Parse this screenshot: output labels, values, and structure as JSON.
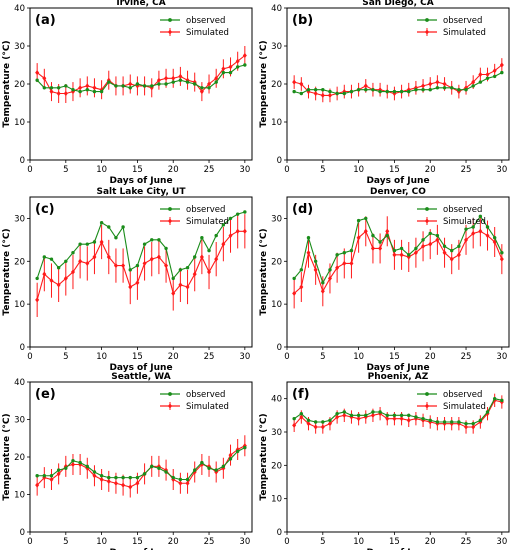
{
  "colors": {
    "observed": "#1a8c1a",
    "simulated": "#ff1a1a"
  },
  "legend": {
    "observed": "observed",
    "simulated": "Simulated",
    "placement": "top-right"
  },
  "chart_data": [
    {
      "type": "line",
      "letter": "(a)",
      "title": "Irvine, CA",
      "xlabel": "Days of June",
      "ylabel": "Temperature (°C)",
      "xlim": [
        0,
        31
      ],
      "ylim": [
        0,
        40
      ],
      "xticks": [
        0,
        5,
        10,
        15,
        20,
        25,
        30
      ],
      "yticks": [
        0,
        10,
        20,
        30,
        40
      ],
      "x": [
        1,
        2,
        3,
        4,
        5,
        6,
        7,
        8,
        9,
        10,
        11,
        12,
        13,
        14,
        15,
        16,
        17,
        18,
        19,
        20,
        21,
        22,
        23,
        24,
        25,
        26,
        27,
        28,
        29,
        30
      ],
      "series": [
        {
          "name": "observed",
          "values": [
            21,
            19,
            19,
            19,
            19.5,
            18.5,
            18,
            18.5,
            18,
            18,
            20.5,
            19.5,
            19.5,
            19,
            20,
            19.5,
            19.5,
            20,
            20,
            20.5,
            21,
            20.5,
            20,
            19,
            19,
            20.5,
            23,
            23,
            24.5,
            25
          ]
        },
        {
          "name": "Simulated",
          "values": [
            23,
            21.5,
            18,
            17.5,
            17.5,
            18,
            19,
            19.5,
            19,
            18.5,
            21,
            19.5,
            19.5,
            20,
            19.5,
            19.5,
            19,
            21,
            21.5,
            21.5,
            22,
            21,
            20.5,
            18,
            20,
            21.5,
            24,
            24.5,
            26,
            27.5
          ],
          "err": 2.5
        }
      ]
    },
    {
      "type": "line",
      "letter": "(b)",
      "title": "San Diego, CA",
      "xlabel": "Days of June",
      "ylabel": "Temperature (°C)",
      "xlim": [
        0,
        31
      ],
      "ylim": [
        0,
        40
      ],
      "xticks": [
        0,
        5,
        10,
        15,
        20,
        25,
        30
      ],
      "yticks": [
        0,
        10,
        20,
        30,
        40
      ],
      "x": [
        1,
        2,
        3,
        4,
        5,
        6,
        7,
        8,
        9,
        10,
        11,
        12,
        13,
        14,
        15,
        16,
        17,
        18,
        19,
        20,
        21,
        22,
        23,
        24,
        25,
        26,
        27,
        28,
        29,
        30
      ],
      "series": [
        {
          "name": "observed",
          "values": [
            18,
            17.5,
            18.5,
            18.5,
            18.5,
            18,
            17.5,
            17.5,
            18,
            18.5,
            18.5,
            18.5,
            18,
            18,
            18,
            18,
            18,
            18.5,
            18.5,
            18.5,
            19,
            19,
            19,
            18.5,
            18.5,
            19.5,
            20.5,
            21.5,
            22,
            23
          ]
        },
        {
          "name": "Simulated",
          "values": [
            20.5,
            20,
            18,
            17.5,
            17,
            17,
            17.5,
            18,
            18,
            18.5,
            19.5,
            18.5,
            18.5,
            18,
            17.5,
            18,
            18.5,
            19,
            19.5,
            20,
            20.5,
            20,
            19,
            18,
            19,
            20.5,
            22.5,
            22.5,
            23.5,
            25
          ],
          "err": 1.8
        }
      ]
    },
    {
      "type": "line",
      "letter": "(c)",
      "title": "Salt Lake City, UT",
      "xlabel": "Days of June",
      "ylabel": "Temperature (°C)",
      "xlim": [
        0,
        31
      ],
      "ylim": [
        0,
        35
      ],
      "xticks": [
        0,
        5,
        10,
        15,
        20,
        25,
        30
      ],
      "yticks": [
        0,
        10,
        20,
        30
      ],
      "x": [
        1,
        2,
        3,
        4,
        5,
        6,
        7,
        8,
        9,
        10,
        11,
        12,
        13,
        14,
        15,
        16,
        17,
        18,
        19,
        20,
        21,
        22,
        23,
        24,
        25,
        26,
        27,
        28,
        29,
        30
      ],
      "series": [
        {
          "name": "observed",
          "values": [
            16,
            21,
            20.5,
            18.5,
            20,
            22,
            24,
            24,
            24.5,
            29,
            28,
            25.5,
            28,
            18,
            19,
            24,
            25,
            25,
            23,
            16,
            18,
            18.5,
            21,
            25.5,
            22.5,
            26,
            28.5,
            30,
            31,
            31.5
          ]
        },
        {
          "name": "Simulated",
          "values": [
            11,
            17,
            15.5,
            14.5,
            16,
            17.5,
            20,
            19.5,
            21,
            24.5,
            21,
            19,
            19,
            14,
            15,
            19.5,
            20.5,
            21,
            19,
            12.5,
            14.5,
            14,
            17,
            21,
            17.5,
            20.5,
            24,
            26,
            27,
            27
          ],
          "err": 4
        }
      ]
    },
    {
      "type": "line",
      "letter": "(d)",
      "title": "Denver, CO",
      "xlabel": "Days of June",
      "ylabel": "Temperature (°C)",
      "xlim": [
        0,
        31
      ],
      "ylim": [
        0,
        35
      ],
      "xticks": [
        0,
        5,
        10,
        15,
        20,
        25,
        30
      ],
      "yticks": [
        0,
        10,
        20,
        30
      ],
      "x": [
        1,
        2,
        3,
        4,
        5,
        6,
        7,
        8,
        9,
        10,
        11,
        12,
        13,
        14,
        15,
        16,
        17,
        18,
        19,
        20,
        21,
        22,
        23,
        24,
        25,
        26,
        27,
        28,
        29,
        30
      ],
      "series": [
        {
          "name": "observed",
          "values": [
            16,
            18,
            25.5,
            20,
            15,
            18,
            21.5,
            22,
            22.5,
            29.5,
            30,
            26,
            24.5,
            26,
            22.5,
            23,
            21.5,
            23,
            25,
            26.5,
            26,
            23.5,
            22.5,
            23.5,
            27.5,
            28,
            30.5,
            28,
            25.5,
            22
          ]
        },
        {
          "name": "Simulated",
          "values": [
            12.5,
            14,
            22,
            18,
            13,
            16,
            18.5,
            19.5,
            19.5,
            25.5,
            27,
            23,
            23,
            27,
            21.5,
            21.5,
            21,
            22,
            23.5,
            24,
            25,
            22,
            20.5,
            21.5,
            25,
            26.5,
            27,
            26,
            24.5,
            20.5
          ],
          "err": 3.5
        }
      ]
    },
    {
      "type": "line",
      "letter": "(e)",
      "title": "Seattle, WA",
      "xlabel": "Days of June",
      "ylabel": "Temperature (°C)",
      "xlim": [
        0,
        31
      ],
      "ylim": [
        0,
        40
      ],
      "xticks": [
        0,
        5,
        10,
        15,
        20,
        25,
        30
      ],
      "yticks": [
        0,
        10,
        20,
        30,
        40
      ],
      "x": [
        1,
        2,
        3,
        4,
        5,
        6,
        7,
        8,
        9,
        10,
        11,
        12,
        13,
        14,
        15,
        16,
        17,
        18,
        19,
        20,
        21,
        22,
        23,
        24,
        25,
        26,
        27,
        28,
        29,
        30
      ],
      "series": [
        {
          "name": "observed",
          "values": [
            15,
            15,
            15,
            16.5,
            17,
            19,
            18.5,
            17.5,
            16,
            15,
            14.5,
            14.5,
            14.5,
            14.5,
            14.5,
            15.5,
            17.5,
            17,
            16,
            14.5,
            14,
            14,
            16.5,
            18.5,
            17,
            16.5,
            17.5,
            19.5,
            21.5,
            22.5
          ]
        },
        {
          "name": "Simulated",
          "values": [
            12.5,
            14.5,
            14,
            15.5,
            17.5,
            18,
            18,
            17,
            15,
            14,
            13.5,
            13,
            12.5,
            12,
            13,
            15.5,
            17.5,
            17.5,
            16.5,
            14,
            13,
            13,
            16,
            18,
            17.5,
            16,
            17,
            20.5,
            22,
            23
          ],
          "err": 2.8
        }
      ]
    },
    {
      "type": "line",
      "letter": "(f)",
      "title": "Phoenix, AZ",
      "xlabel": "Days of June",
      "ylabel": "Temperature (°C)",
      "xlim": [
        0,
        31
      ],
      "ylim": [
        0,
        45
      ],
      "xticks": [
        0,
        5,
        10,
        15,
        20,
        25,
        30
      ],
      "yticks": [
        0,
        10,
        20,
        30,
        40
      ],
      "x": [
        1,
        2,
        3,
        4,
        5,
        6,
        7,
        8,
        9,
        10,
        11,
        12,
        13,
        14,
        15,
        16,
        17,
        18,
        19,
        20,
        21,
        22,
        23,
        24,
        25,
        26,
        27,
        28,
        29,
        30
      ],
      "series": [
        {
          "name": "observed",
          "values": [
            34,
            35.5,
            33.5,
            33,
            33,
            33.5,
            35.5,
            36,
            35,
            35,
            35,
            36,
            36,
            35,
            35,
            35,
            35,
            34.5,
            34,
            33.5,
            33,
            33,
            33,
            33,
            32.5,
            32.5,
            33.5,
            36,
            40,
            39.5
          ]
        },
        {
          "name": "Simulated",
          "values": [
            32,
            34.5,
            32.5,
            31.5,
            31.5,
            32.5,
            34.5,
            35,
            34.5,
            34,
            34.5,
            35,
            35.5,
            34,
            34,
            34,
            33.5,
            34,
            33.5,
            33,
            32.5,
            32.5,
            32.5,
            32.5,
            31.5,
            31.5,
            33,
            35.5,
            39.5,
            39
          ],
          "err": 2
        }
      ]
    }
  ]
}
